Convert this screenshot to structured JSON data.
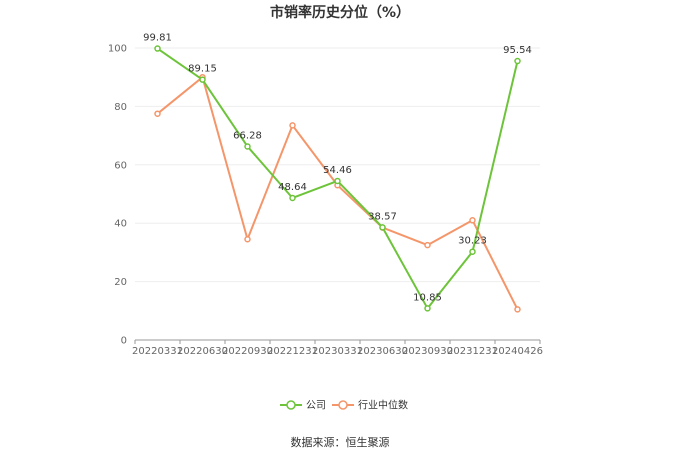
{
  "chart_data": {
    "type": "line",
    "title": "市销率历史分位（%）",
    "xlabel": "",
    "ylabel": "",
    "categories": [
      "20220331",
      "20220630",
      "20220930",
      "20221231",
      "20230331",
      "20230630",
      "20230930",
      "20231231",
      "20240426"
    ],
    "ylim": [
      0,
      100
    ],
    "yticks": [
      0,
      20,
      40,
      60,
      80,
      100
    ],
    "grid": true,
    "legend_position": "bottom",
    "series": [
      {
        "name": "公司",
        "color": "#6dc43a",
        "values": [
          99.81,
          89.15,
          66.28,
          48.64,
          54.46,
          38.57,
          10.85,
          30.23,
          95.54
        ],
        "labels": [
          "99.81",
          "89.15",
          "66.28",
          "48.64",
          "54.46",
          "38.57",
          "10.85",
          "30.23",
          "95.54"
        ]
      },
      {
        "name": "行业中位数",
        "color": "#f4966a",
        "values": [
          77.5,
          90,
          34.5,
          73.5,
          53,
          38.5,
          32.5,
          41,
          10.5
        ]
      }
    ]
  },
  "source": "数据来源：恒生聚源"
}
